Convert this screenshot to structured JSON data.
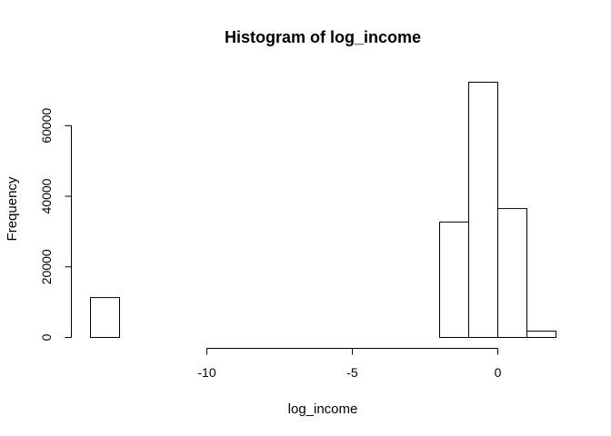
{
  "chart_data": {
    "type": "bar",
    "title": "Histogram of log_income",
    "xlabel": "log_income",
    "ylabel": "Frequency",
    "bin_edges": [
      -14,
      -13,
      -12,
      -11,
      -10,
      -9,
      -8,
      -7,
      -6,
      -5,
      -4,
      -3,
      -2,
      -1,
      0,
      1,
      2
    ],
    "values": [
      11300,
      0,
      0,
      0,
      0,
      0,
      0,
      0,
      0,
      0,
      0,
      0,
      32700,
      72300,
      36500,
      1800
    ],
    "x_ticks": [
      -10,
      -5,
      0
    ],
    "x_tick_labels": [
      "-10",
      "-5",
      "0"
    ],
    "y_ticks": [
      0,
      20000,
      40000,
      60000
    ],
    "y_tick_labels": [
      "0",
      "20000",
      "40000",
      "60000"
    ],
    "xlim": [
      -14,
      2
    ],
    "ylim": [
      0,
      72300
    ],
    "grid": false,
    "colors": {
      "bar_fill": "#ffffff",
      "bar_stroke": "#000000"
    }
  }
}
